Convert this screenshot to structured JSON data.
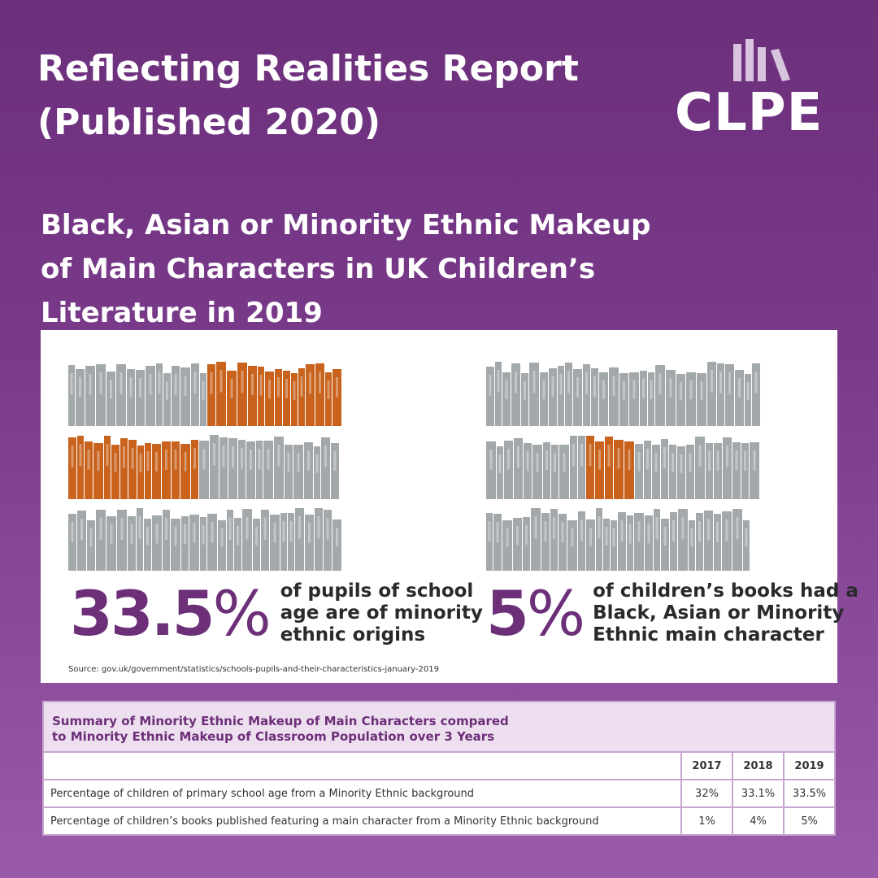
{
  "header": {
    "title_line1": "Reflecting Realities Report",
    "title_line2": "(Published 2020)"
  },
  "logo": {
    "text": "CLPE",
    "icon": "books-bars-icon"
  },
  "subtitle": {
    "line1": "Black, Asian or Minority Ethnic Makeup",
    "line2": "of Main Characters in UK Children’s",
    "line3": "Literature in 2019"
  },
  "colors": {
    "accent": "#6c2f78",
    "highlight_book": "#c8621c",
    "grey_book": "#a3a8ab"
  },
  "infographic": {
    "left": {
      "value": "33.5",
      "unit": "%",
      "line1": "of pupils of school",
      "line2": "age are of minority",
      "line3": "ethnic origins",
      "highlighted_share": 33.5
    },
    "right": {
      "value": "5",
      "unit": "%",
      "line1": "of children’s books had a",
      "line2": "Black, Asian or Minority",
      "line3": "Ethnic main character",
      "highlighted_share": 5
    },
    "source": "Source: gov.uk/government/statistics/schools-pupils-and-their-characteristics-january-2019"
  },
  "table": {
    "title_line1": "Summary of Minority Ethnic Makeup of Main Characters compared",
    "title_line2": "to Minority Ethnic Makeup of Classroom Population over 3 Years",
    "years": [
      "2017",
      "2018",
      "2019"
    ],
    "rows": [
      {
        "label": "Percentage of children of primary school age from a Minority Ethnic background",
        "values": [
          "32%",
          "33.1%",
          "33.5%"
        ]
      },
      {
        "label": "Percentage of children’s books published featuring a main character from a Minority Ethnic background",
        "values": [
          "1%",
          "4%",
          "5%"
        ]
      }
    ]
  }
}
